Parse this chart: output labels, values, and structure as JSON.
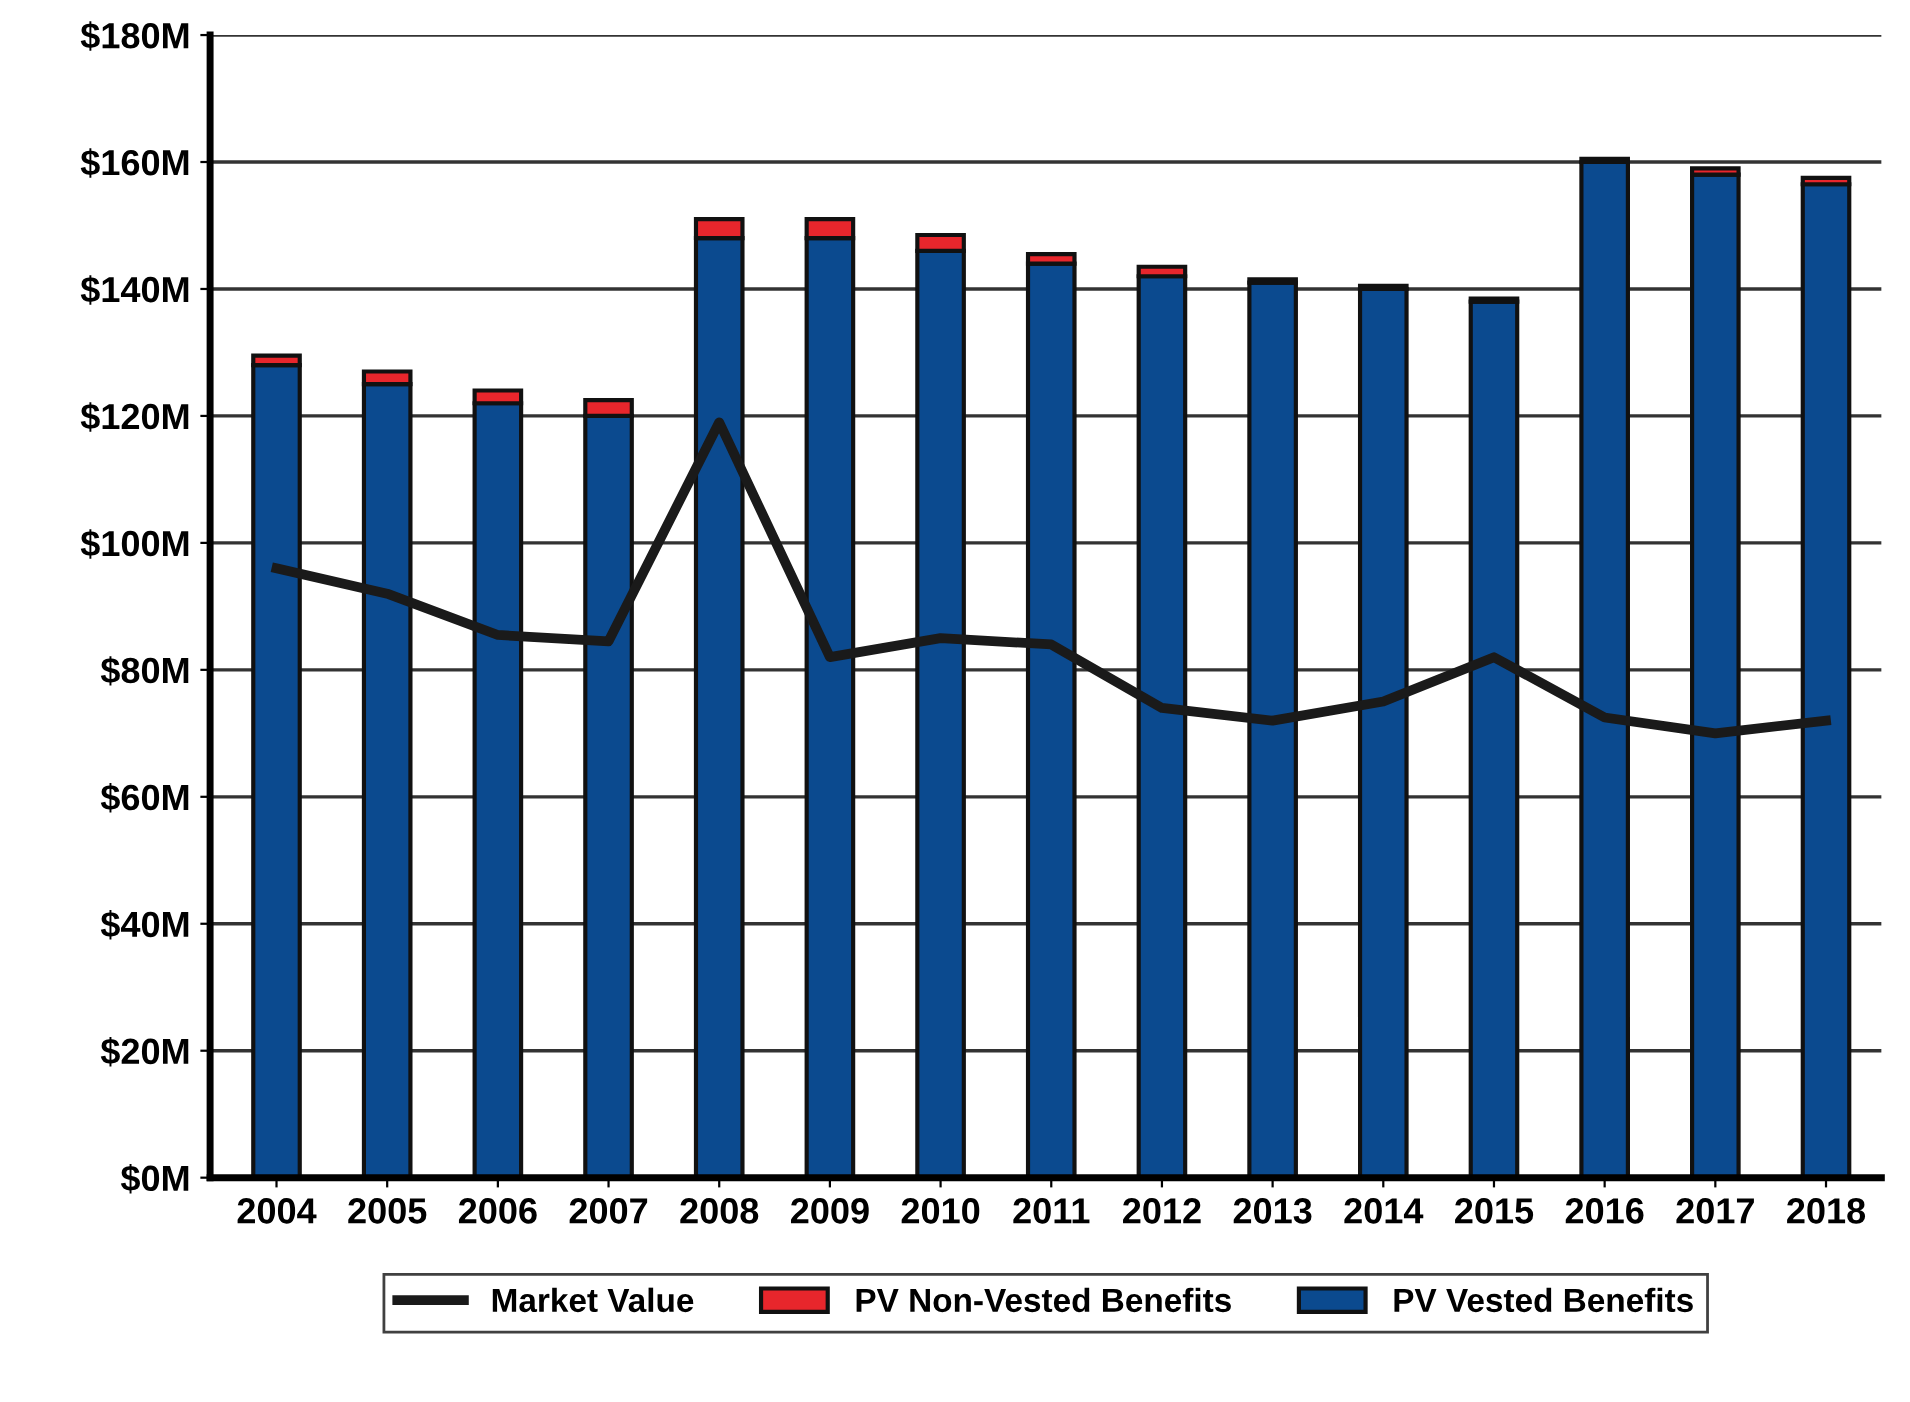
{
  "chart_data": {
    "type": "bar",
    "stacked": true,
    "categories": [
      "2004",
      "2005",
      "2006",
      "2007",
      "2008",
      "2009",
      "2010",
      "2011",
      "2012",
      "2013",
      "2014",
      "2015",
      "2016",
      "2017",
      "2018"
    ],
    "series": [
      {
        "name": "PV Vested Benefits",
        "color": "#0b4a8f",
        "values": [
          128,
          125,
          122,
          120,
          148,
          148,
          146,
          144,
          142,
          141,
          140,
          138,
          160,
          158,
          156.5
        ]
      },
      {
        "name": "PV Non-Vested Benefits",
        "color": "#e8262c",
        "values": [
          1.5,
          2,
          2,
          2.5,
          3,
          3,
          2.5,
          1.5,
          1.5,
          0.5,
          0.5,
          0.5,
          0.5,
          1,
          1
        ]
      },
      {
        "name": "Market Value",
        "type": "line",
        "color": "#1a1a1a",
        "values": [
          96,
          92,
          85.5,
          84.5,
          119,
          82,
          85,
          84,
          74,
          72,
          75,
          82,
          72.5,
          70,
          72
        ]
      }
    ],
    "ylim": [
      0,
      180
    ],
    "yticks": [
      {
        "value": 0,
        "label": "$0M"
      },
      {
        "value": 20,
        "label": "$20M"
      },
      {
        "value": 40,
        "label": "$40M"
      },
      {
        "value": 60,
        "label": "$60M"
      },
      {
        "value": 80,
        "label": "$80M"
      },
      {
        "value": 100,
        "label": "$100M"
      },
      {
        "value": 120,
        "label": "$120M"
      },
      {
        "value": 140,
        "label": "$140M"
      },
      {
        "value": 160,
        "label": "$160M"
      },
      {
        "value": 180,
        "label": "$180M"
      }
    ],
    "grid": "y",
    "legend": "bottom",
    "marker": "none",
    "line_style": "solid"
  }
}
